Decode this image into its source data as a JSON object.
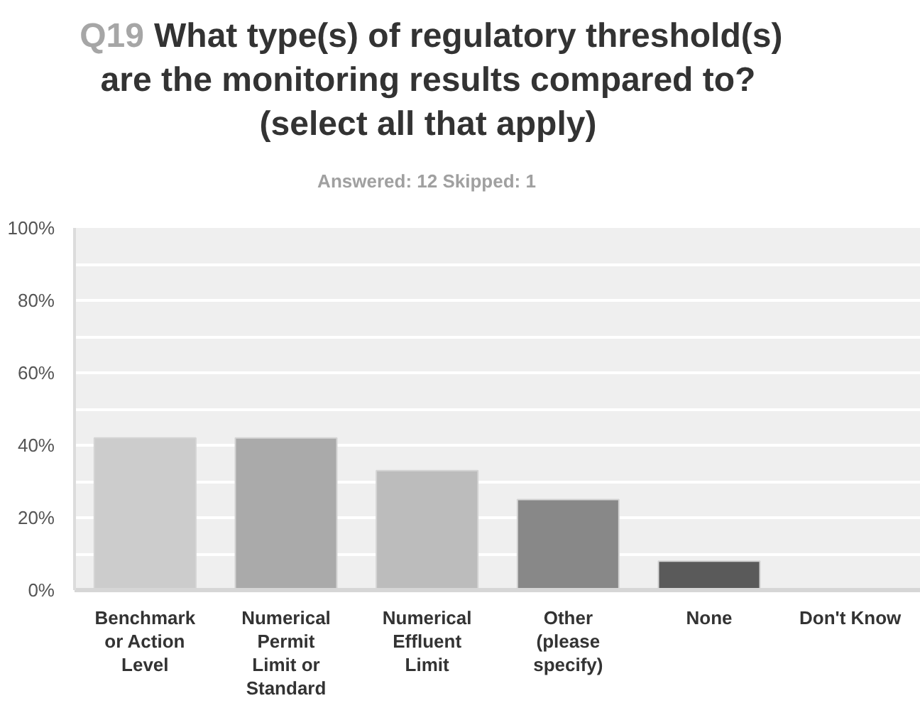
{
  "chart_data": {
    "type": "bar",
    "title": "Q19 What type(s) of regulatory threshold(s) are the monitoring results compared to? (select all that apply)",
    "subtitle": "Answered: 12 Skipped: 1",
    "categories": [
      "Benchmark or Action Level",
      "Numerical Permit Limit or Standard",
      "Numerical Effluent Limit",
      "Other (please specify)",
      "None",
      "Don't Know"
    ],
    "values": [
      42,
      42,
      33,
      25,
      8,
      0
    ],
    "colors": [
      "#cccccc",
      "#aaaaaa",
      "#bcbcbc",
      "#888888",
      "#5a5a5a",
      null
    ],
    "ylim": [
      0,
      100
    ],
    "yticks": [
      {
        "value": 0,
        "label": "0%"
      },
      {
        "value": 10,
        "label": null
      },
      {
        "value": 20,
        "label": "20%"
      },
      {
        "value": 30,
        "label": null
      },
      {
        "value": 40,
        "label": "40%"
      },
      {
        "value": 50,
        "label": null
      },
      {
        "value": 60,
        "label": "60%"
      },
      {
        "value": 70,
        "label": null
      },
      {
        "value": 80,
        "label": "80%"
      },
      {
        "value": 90,
        "label": null
      },
      {
        "value": 100,
        "label": "100%"
      }
    ],
    "grid": "y"
  }
}
